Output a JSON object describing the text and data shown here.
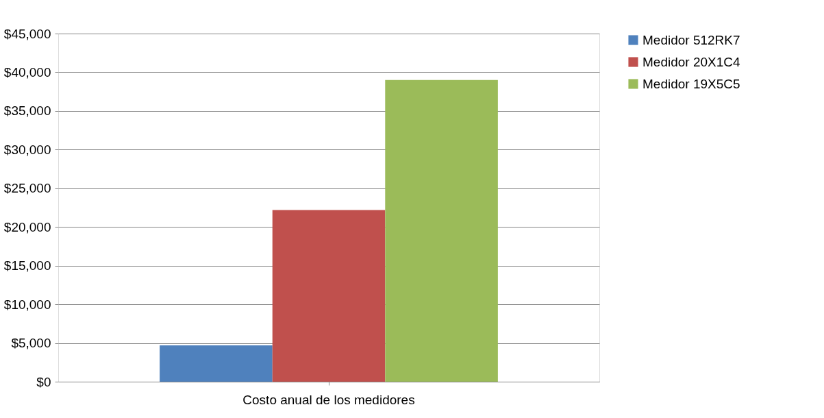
{
  "chart_data": {
    "type": "bar",
    "categories": [
      "Costo anual de los medidores"
    ],
    "series": [
      {
        "name": "Medidor  512RK7",
        "color": "#4f81bd",
        "values": [
          4700
        ]
      },
      {
        "name": "Medidor  20X1C4",
        "color": "#c0504d",
        "values": [
          22200
        ]
      },
      {
        "name": "Medidor  19X5C5",
        "color": "#9bbb59",
        "values": [
          39000
        ]
      }
    ],
    "ylim": [
      0,
      45000
    ],
    "yticks": [
      {
        "value": 0,
        "label": "$0"
      },
      {
        "value": 5000,
        "label": "$5,000"
      },
      {
        "value": 10000,
        "label": "$10,000"
      },
      {
        "value": 15000,
        "label": "$15,000"
      },
      {
        "value": 20000,
        "label": "$20,000"
      },
      {
        "value": 25000,
        "label": "$25,000"
      },
      {
        "value": 30000,
        "label": "$30,000"
      },
      {
        "value": 35000,
        "label": "$35,000"
      },
      {
        "value": 40000,
        "label": "$40,000"
      },
      {
        "value": 45000,
        "label": "$45,000"
      }
    ],
    "grid": "y",
    "legend": "right"
  }
}
